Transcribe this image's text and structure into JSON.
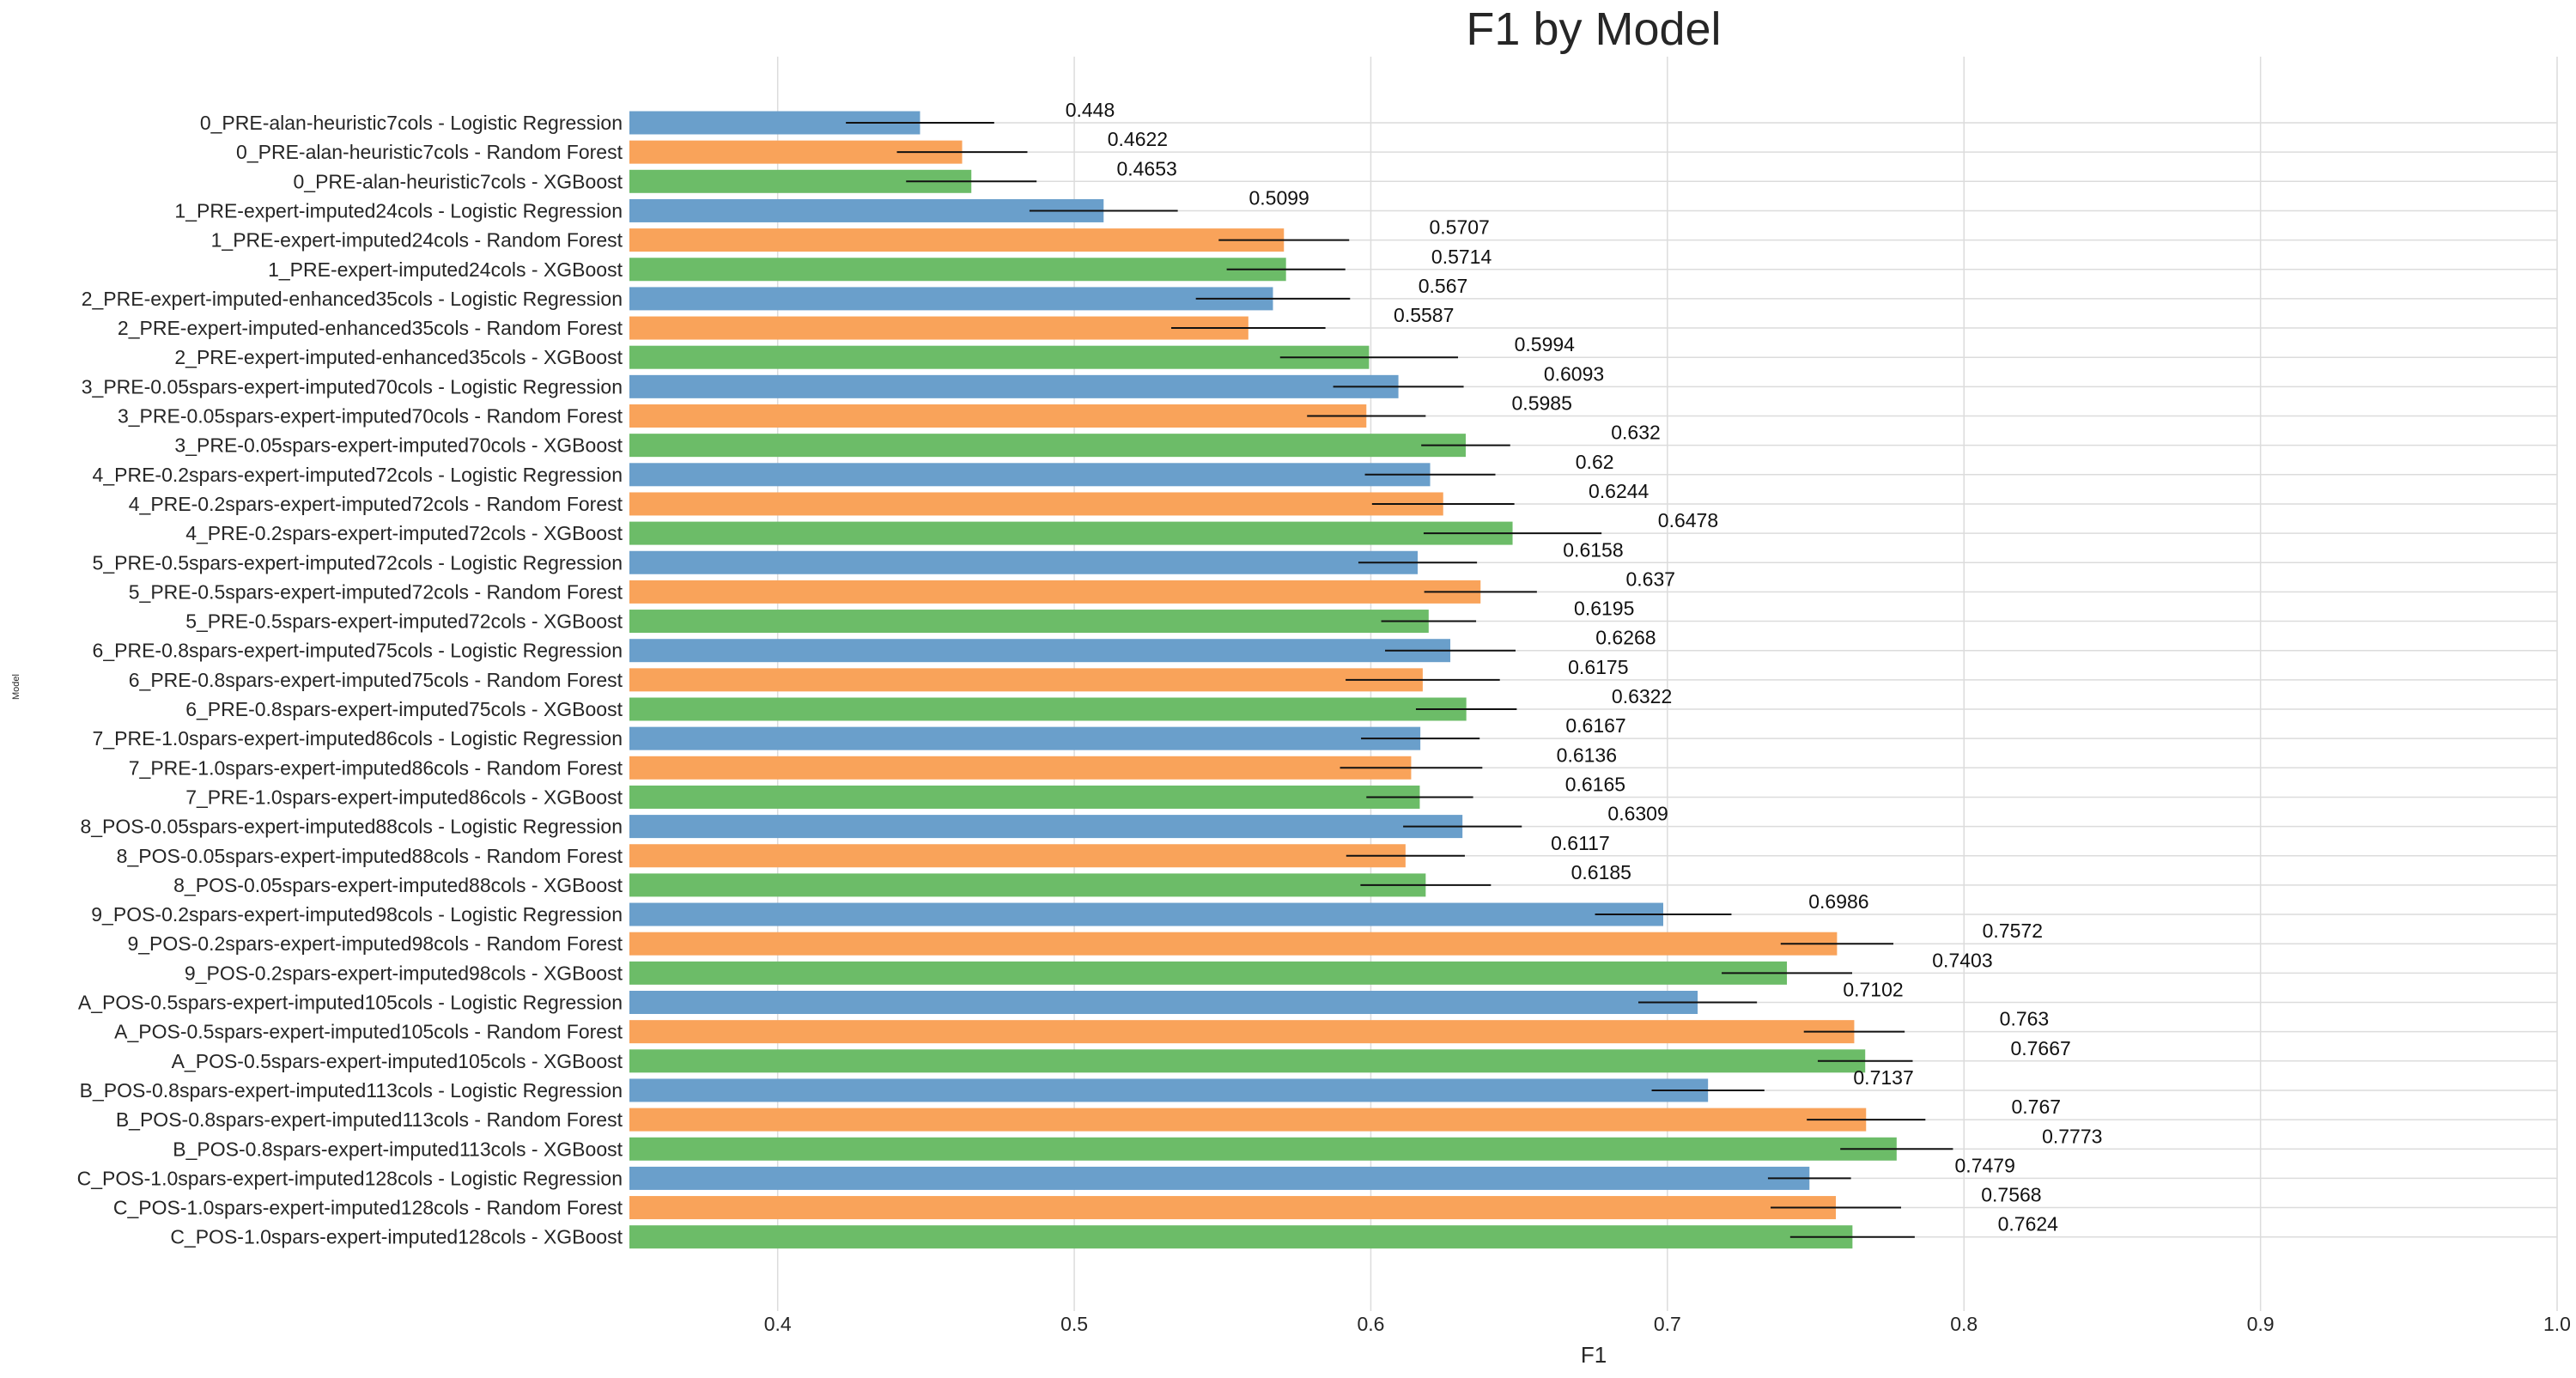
{
  "chart_data": {
    "type": "bar",
    "orientation": "horizontal",
    "title": "F1 by Model",
    "xlabel": "F1",
    "ylabel": "Model",
    "xlim": [
      0.35,
      1.0
    ],
    "xticks": [
      "0.4",
      "0.5",
      "0.6",
      "0.7",
      "0.8",
      "0.9",
      "1.0"
    ],
    "grid": true,
    "colors": {
      "Logistic Regression": "#6a9fcb",
      "Random Forest": "#f9a35a",
      "XGBoost": "#6cbc68"
    },
    "categories": [
      "0_PRE-alan-heuristic7cols - Logistic Regression",
      "0_PRE-alan-heuristic7cols - Random Forest",
      "0_PRE-alan-heuristic7cols - XGBoost",
      "1_PRE-expert-imputed24cols - Logistic Regression",
      "1_PRE-expert-imputed24cols - Random Forest",
      "1_PRE-expert-imputed24cols - XGBoost",
      "2_PRE-expert-imputed-enhanced35cols - Logistic Regression",
      "2_PRE-expert-imputed-enhanced35cols - Random Forest",
      "2_PRE-expert-imputed-enhanced35cols - XGBoost",
      "3_PRE-0.05spars-expert-imputed70cols - Logistic Regression",
      "3_PRE-0.05spars-expert-imputed70cols - Random Forest",
      "3_PRE-0.05spars-expert-imputed70cols - XGBoost",
      "4_PRE-0.2spars-expert-imputed72cols - Logistic Regression",
      "4_PRE-0.2spars-expert-imputed72cols - Random Forest",
      "4_PRE-0.2spars-expert-imputed72cols - XGBoost",
      "5_PRE-0.5spars-expert-imputed72cols - Logistic Regression",
      "5_PRE-0.5spars-expert-imputed72cols - Random Forest",
      "5_PRE-0.5spars-expert-imputed72cols - XGBoost",
      "6_PRE-0.8spars-expert-imputed75cols - Logistic Regression",
      "6_PRE-0.8spars-expert-imputed75cols - Random Forest",
      "6_PRE-0.8spars-expert-imputed75cols - XGBoost",
      "7_PRE-1.0spars-expert-imputed86cols - Logistic Regression",
      "7_PRE-1.0spars-expert-imputed86cols - Random Forest",
      "7_PRE-1.0spars-expert-imputed86cols - XGBoost",
      "8_POS-0.05spars-expert-imputed88cols - Logistic Regression",
      "8_POS-0.05spars-expert-imputed88cols - Random Forest",
      "8_POS-0.05spars-expert-imputed88cols - XGBoost",
      "9_POS-0.2spars-expert-imputed98cols - Logistic Regression",
      "9_POS-0.2spars-expert-imputed98cols - Random Forest",
      "9_POS-0.2spars-expert-imputed98cols - XGBoost",
      "A_POS-0.5spars-expert-imputed105cols - Logistic Regression",
      "A_POS-0.5spars-expert-imputed105cols - Random Forest",
      "A_POS-0.5spars-expert-imputed105cols - XGBoost",
      "B_POS-0.8spars-expert-imputed113cols - Logistic Regression",
      "B_POS-0.8spars-expert-imputed113cols - Random Forest",
      "B_POS-0.8spars-expert-imputed113cols - XGBoost",
      "C_POS-1.0spars-expert-imputed128cols - Logistic Regression",
      "C_POS-1.0spars-expert-imputed128cols - Random Forest",
      "C_POS-1.0spars-expert-imputed128cols - XGBoost"
    ],
    "values": [
      0.448,
      0.4622,
      0.4653,
      0.5099,
      0.5707,
      0.5714,
      0.567,
      0.5587,
      0.5994,
      0.6093,
      0.5985,
      0.632,
      0.62,
      0.6244,
      0.6478,
      0.6158,
      0.637,
      0.6195,
      0.6268,
      0.6175,
      0.6322,
      0.6167,
      0.6136,
      0.6165,
      0.6309,
      0.6117,
      0.6185,
      0.6986,
      0.7572,
      0.7403,
      0.7102,
      0.763,
      0.7667,
      0.7137,
      0.767,
      0.7773,
      0.7479,
      0.7568,
      0.7624
    ],
    "value_labels": [
      "0.448",
      "0.4622",
      "0.4653",
      "0.5099",
      "0.5707",
      "0.5714",
      "0.567",
      "0.5587",
      "0.5994",
      "0.6093",
      "0.5985",
      "0.632",
      "0.62",
      "0.6244",
      "0.6478",
      "0.6158",
      "0.637",
      "0.6195",
      "0.6268",
      "0.6175",
      "0.6322",
      "0.6167",
      "0.6136",
      "0.6165",
      "0.6309",
      "0.6117",
      "0.6185",
      "0.6986",
      "0.7572",
      "0.7403",
      "0.7102",
      "0.763",
      "0.7667",
      "0.7137",
      "0.767",
      "0.7773",
      "0.7479",
      "0.7568",
      "0.7624"
    ],
    "errors": [
      0.025,
      0.022,
      0.022,
      0.025,
      0.022,
      0.02,
      0.026,
      0.026,
      0.03,
      0.022,
      0.02,
      0.015,
      0.022,
      0.024,
      0.03,
      0.02,
      0.019,
      0.016,
      0.022,
      0.026,
      0.017,
      0.02,
      0.024,
      0.018,
      0.02,
      0.02,
      0.022,
      0.023,
      0.019,
      0.022,
      0.02,
      0.017,
      0.016,
      0.019,
      0.02,
      0.019,
      0.014,
      0.022,
      0.021
    ]
  }
}
